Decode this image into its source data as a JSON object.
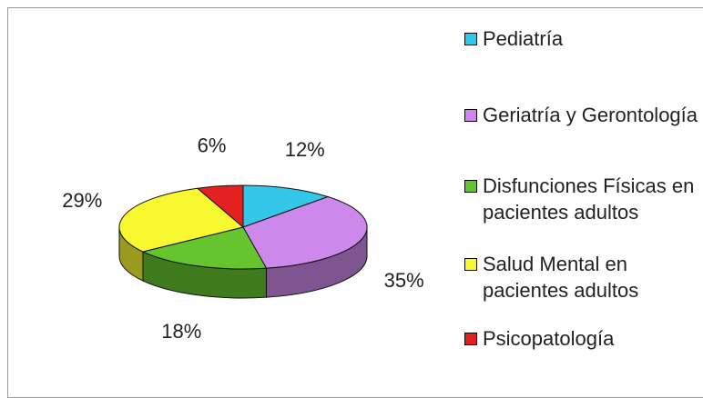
{
  "chart_data": {
    "type": "pie3d",
    "categories": [
      "Pediatría",
      "Geriatría y Gerontología",
      "Disfunciones Físicas en pacientes adultos",
      "Salud Mental en pacientes adultos",
      "Psicopatología"
    ],
    "values": [
      12,
      35,
      18,
      29,
      6
    ],
    "value_labels": [
      "12%",
      "35%",
      "18%",
      "29%",
      "6%"
    ],
    "colors": [
      "#33c6e8",
      "#cc88ea",
      "#66c42e",
      "#f8f830",
      "#e42020"
    ],
    "legend": "right"
  }
}
